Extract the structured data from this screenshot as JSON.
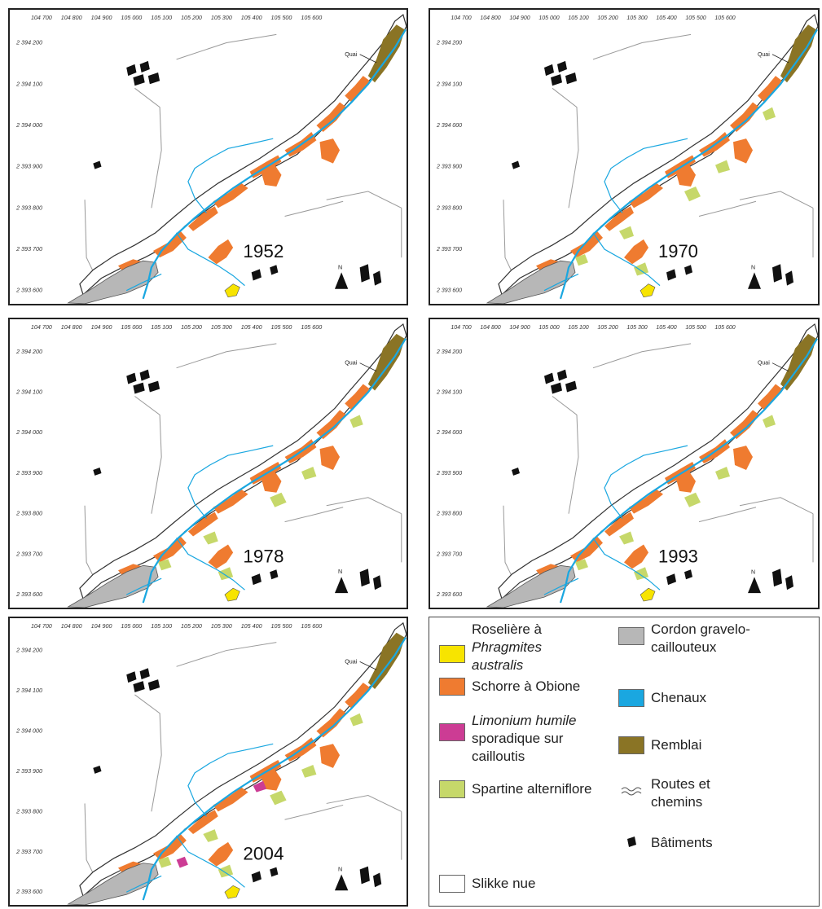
{
  "x_ticks": [
    "104 700",
    "104 800",
    "104 900",
    "105 000",
    "105 100",
    "105 200",
    "105 300",
    "105 400",
    "105 500",
    "105 600"
  ],
  "y_ticks": [
    "2 394 200",
    "2 394 100",
    "2 394 000",
    "2 393 900",
    "2 393 800",
    "2 393 700",
    "2 393 600"
  ],
  "quai_label": "Quai",
  "north_label": "N",
  "panels": [
    {
      "year": "1952",
      "zones": [
        "schorre",
        "roseliere",
        "cordon",
        "chenaux",
        "remblai"
      ]
    },
    {
      "year": "1970",
      "zones": [
        "schorre",
        "roseliere",
        "cordon",
        "chenaux",
        "remblai",
        "spartine"
      ]
    },
    {
      "year": "1978",
      "zones": [
        "schorre",
        "roseliere",
        "cordon",
        "chenaux",
        "remblai",
        "spartine"
      ]
    },
    {
      "year": "1993",
      "zones": [
        "schorre",
        "roseliere",
        "cordon",
        "chenaux",
        "remblai",
        "spartine"
      ]
    },
    {
      "year": "2004",
      "zones": [
        "schorre",
        "roseliere",
        "cordon",
        "chenaux",
        "remblai",
        "spartine",
        "limonium"
      ]
    }
  ],
  "legend": {
    "roseliere": {
      "l1": "Roselière à",
      "l2": "Phragmites",
      "l3": "australis",
      "color": "#f7e400"
    },
    "schorre": {
      "label": "Schorre à Obione",
      "color": "#ef7b30"
    },
    "limonium": {
      "l1": "Limonium humile",
      "l2": "sporadique sur",
      "l3": "cailloutis",
      "color": "#cc3c94"
    },
    "spartine": {
      "label": "Spartine alterniflore",
      "color": "#c6d86a"
    },
    "slikke": {
      "label": "Slikke nue",
      "color": "#ffffff"
    },
    "cordon": {
      "l1": "Cordon gravelo-",
      "l2": "caillouteux",
      "color": "#b7b7b7"
    },
    "chenaux": {
      "label": "Chenaux",
      "color": "#1aa7e0"
    },
    "remblai": {
      "label": "Remblai",
      "color": "#8a7425"
    },
    "routes": {
      "l1": "Routes et",
      "l2": "chemins"
    },
    "batiments": {
      "label": "Bâtiments"
    }
  }
}
